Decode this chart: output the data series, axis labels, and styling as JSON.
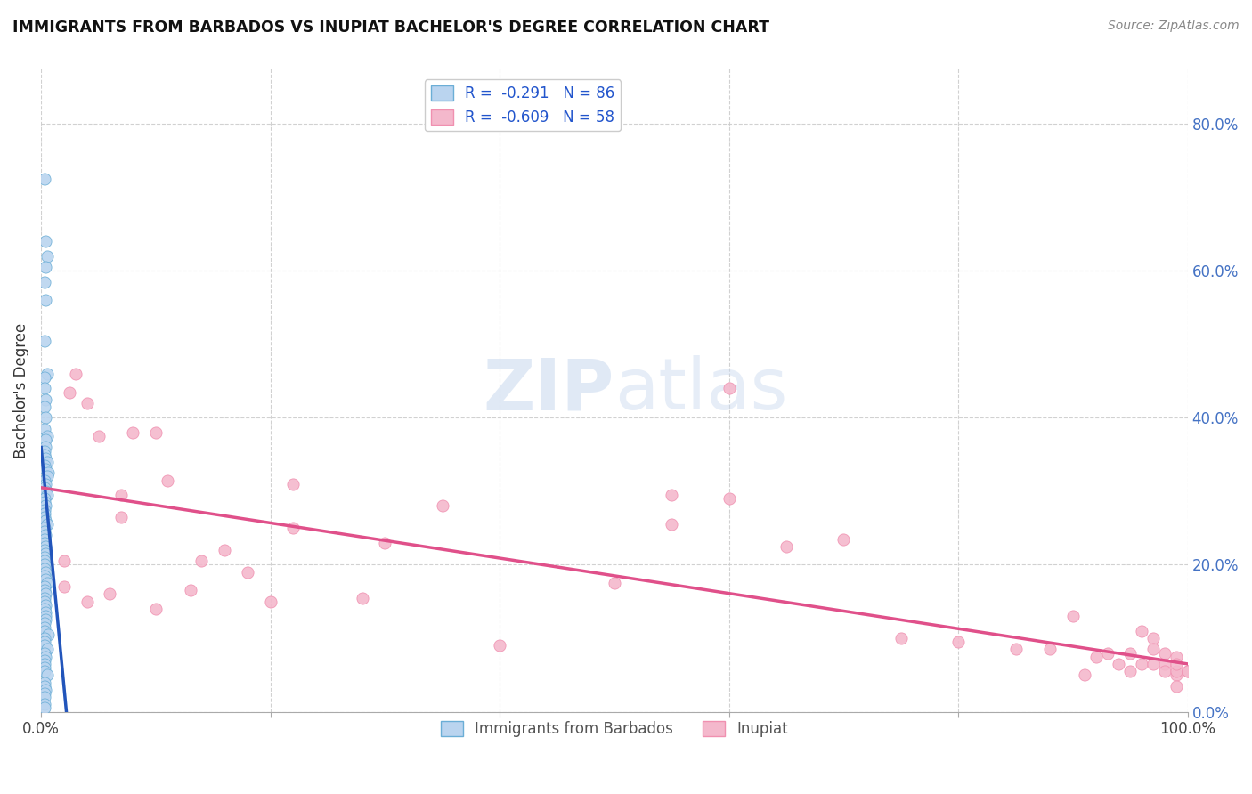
{
  "title": "IMMIGRANTS FROM BARBADOS VS INUPIAT BACHELOR'S DEGREE CORRELATION CHART",
  "source": "Source: ZipAtlas.com",
  "ylabel": "Bachelor's Degree",
  "legend_entry1": "R =  -0.291   N = 86",
  "legend_entry2": "R =  -0.609   N = 58",
  "legend_label1": "Immigrants from Barbados",
  "legend_label2": "Inupiat",
  "color_blue": "#bad4ef",
  "color_pink": "#f4b8cc",
  "color_blue_edge": "#6baed6",
  "color_pink_edge": "#f090b0",
  "color_blue_line": "#2255bb",
  "color_pink_line": "#e0508a",
  "blue_dots_x": [
    0.003,
    0.004,
    0.005,
    0.004,
    0.003,
    0.004,
    0.003,
    0.005,
    0.003,
    0.003,
    0.004,
    0.003,
    0.004,
    0.003,
    0.005,
    0.004,
    0.004,
    0.003,
    0.003,
    0.004,
    0.005,
    0.003,
    0.004,
    0.006,
    0.005,
    0.003,
    0.004,
    0.003,
    0.004,
    0.005,
    0.003,
    0.003,
    0.004,
    0.003,
    0.003,
    0.003,
    0.004,
    0.005,
    0.003,
    0.003,
    0.004,
    0.003,
    0.003,
    0.004,
    0.003,
    0.004,
    0.003,
    0.003,
    0.003,
    0.003,
    0.004,
    0.003,
    0.004,
    0.005,
    0.003,
    0.003,
    0.004,
    0.003,
    0.003,
    0.004,
    0.003,
    0.004,
    0.004,
    0.004,
    0.003,
    0.003,
    0.003,
    0.006,
    0.003,
    0.003,
    0.003,
    0.005,
    0.003,
    0.004,
    0.003,
    0.003,
    0.003,
    0.003,
    0.005,
    0.003,
    0.003,
    0.004,
    0.003,
    0.003,
    0.003,
    0.003
  ],
  "blue_dots_y": [
    0.725,
    0.64,
    0.62,
    0.605,
    0.585,
    0.56,
    0.505,
    0.46,
    0.455,
    0.44,
    0.425,
    0.415,
    0.4,
    0.385,
    0.375,
    0.37,
    0.36,
    0.355,
    0.35,
    0.345,
    0.34,
    0.335,
    0.33,
    0.325,
    0.32,
    0.315,
    0.31,
    0.305,
    0.3,
    0.295,
    0.29,
    0.285,
    0.28,
    0.275,
    0.27,
    0.265,
    0.26,
    0.255,
    0.25,
    0.245,
    0.24,
    0.235,
    0.23,
    0.225,
    0.22,
    0.215,
    0.21,
    0.205,
    0.2,
    0.195,
    0.19,
    0.185,
    0.18,
    0.175,
    0.17,
    0.165,
    0.16,
    0.155,
    0.15,
    0.145,
    0.14,
    0.135,
    0.13,
    0.125,
    0.12,
    0.115,
    0.11,
    0.105,
    0.1,
    0.095,
    0.09,
    0.085,
    0.08,
    0.075,
    0.07,
    0.065,
    0.06,
    0.055,
    0.05,
    0.04,
    0.035,
    0.03,
    0.025,
    0.02,
    0.01,
    0.005
  ],
  "pink_dots_x": [
    0.025,
    0.04,
    0.08,
    0.03,
    0.07,
    0.11,
    0.22,
    0.07,
    0.05,
    0.02,
    0.14,
    0.18,
    0.35,
    0.1,
    0.2,
    0.28,
    0.02,
    0.13,
    0.5,
    0.55,
    0.6,
    0.55,
    0.65,
    0.7,
    0.75,
    0.8,
    0.85,
    0.88,
    0.9,
    0.91,
    0.92,
    0.93,
    0.94,
    0.95,
    0.95,
    0.96,
    0.96,
    0.97,
    0.97,
    0.97,
    0.98,
    0.98,
    0.98,
    0.99,
    0.99,
    0.99,
    0.99,
    0.99,
    1.0,
    1.0,
    0.6,
    0.3,
    0.4,
    0.06,
    0.16,
    0.22,
    0.04,
    0.1
  ],
  "pink_dots_y": [
    0.435,
    0.42,
    0.38,
    0.46,
    0.295,
    0.315,
    0.31,
    0.265,
    0.375,
    0.205,
    0.205,
    0.19,
    0.28,
    0.38,
    0.15,
    0.155,
    0.17,
    0.165,
    0.175,
    0.295,
    0.29,
    0.255,
    0.225,
    0.235,
    0.1,
    0.095,
    0.085,
    0.085,
    0.13,
    0.05,
    0.075,
    0.08,
    0.065,
    0.055,
    0.08,
    0.065,
    0.11,
    0.1,
    0.065,
    0.085,
    0.065,
    0.08,
    0.055,
    0.075,
    0.05,
    0.055,
    0.065,
    0.035,
    0.055,
    0.055,
    0.44,
    0.23,
    0.09,
    0.16,
    0.22,
    0.25,
    0.15,
    0.14
  ],
  "blue_line_x": [
    0.0,
    0.022
  ],
  "blue_line_y": [
    0.36,
    0.0
  ],
  "pink_line_x": [
    0.0,
    1.0
  ],
  "pink_line_y": [
    0.305,
    0.065
  ],
  "xlim": [
    0,
    1.0
  ],
  "ylim": [
    0,
    0.875
  ],
  "ytick_positions": [
    0.0,
    0.2,
    0.4,
    0.6,
    0.8
  ],
  "ytick_labels": [
    "0.0%",
    "20.0%",
    "40.0%",
    "60.0%",
    "80.0%"
  ]
}
